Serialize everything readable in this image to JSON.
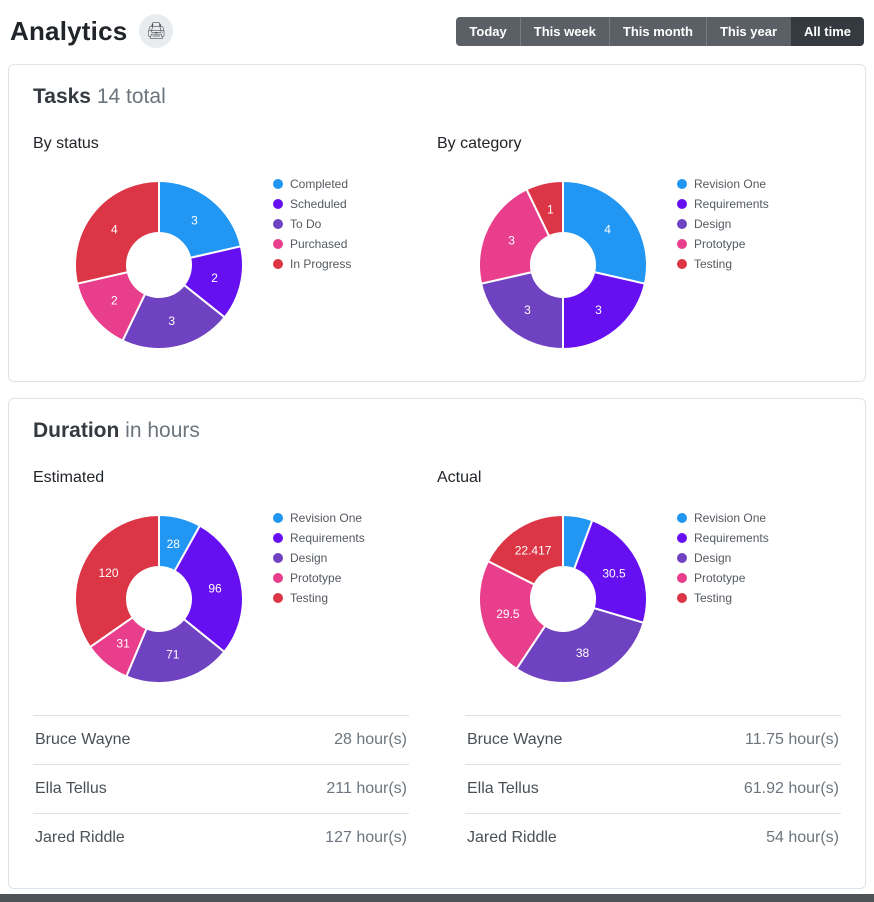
{
  "header": {
    "title": "Analytics",
    "print_glyph": "🖨",
    "time_filters": [
      {
        "label": "Today",
        "active": false
      },
      {
        "label": "This week",
        "active": false
      },
      {
        "label": "This month",
        "active": false
      },
      {
        "label": "This year",
        "active": false
      },
      {
        "label": "All time",
        "active": true
      }
    ]
  },
  "tasks_card": {
    "title": "Tasks",
    "subtitle": "14 total"
  },
  "duration_card": {
    "title": "Duration",
    "subtitle": "in hours",
    "tables": [
      {
        "rows": [
          {
            "name": "Bruce Wayne",
            "hours": "28 hour(s)"
          },
          {
            "name": "Ella Tellus",
            "hours": "211 hour(s)"
          },
          {
            "name": "Jared Riddle",
            "hours": "127 hour(s)"
          }
        ]
      },
      {
        "rows": [
          {
            "name": "Bruce Wayne",
            "hours": "11.75 hour(s)"
          },
          {
            "name": "Ella Tellus",
            "hours": "61.92 hour(s)"
          },
          {
            "name": "Jared Riddle",
            "hours": "54 hour(s)"
          }
        ]
      }
    ]
  },
  "chart_data": [
    {
      "type": "pie",
      "donut": true,
      "title": "By status",
      "categories": [
        "Completed",
        "Scheduled",
        "To Do",
        "Purchased",
        "In Progress"
      ],
      "values": [
        3,
        2,
        3,
        2,
        4
      ],
      "labels": [
        "3",
        "2",
        "3",
        "2",
        "4"
      ],
      "colors": [
        "#2196f3",
        "#6610f2",
        "#6f42c1",
        "#e83e8c",
        "#dc3545"
      ],
      "legend_position": "right"
    },
    {
      "type": "pie",
      "donut": true,
      "title": "By category",
      "categories": [
        "Revision One",
        "Requirements",
        "Design",
        "Prototype",
        "Testing"
      ],
      "values": [
        4,
        3,
        3,
        3,
        1
      ],
      "labels": [
        "4",
        "3",
        "3",
        "3",
        "1"
      ],
      "colors": [
        "#2196f3",
        "#6610f2",
        "#6f42c1",
        "#e83e8c",
        "#dc3545"
      ],
      "legend_position": "right"
    },
    {
      "type": "pie",
      "donut": true,
      "title": "Estimated",
      "categories": [
        "Revision One",
        "Requirements",
        "Design",
        "Prototype",
        "Testing"
      ],
      "values": [
        28,
        96,
        71,
        31,
        120
      ],
      "labels": [
        "28",
        "96",
        "71",
        "31",
        "120"
      ],
      "colors": [
        "#2196f3",
        "#6610f2",
        "#6f42c1",
        "#e83e8c",
        "#dc3545"
      ],
      "legend_position": "right"
    },
    {
      "type": "pie",
      "donut": true,
      "title": "Actual",
      "categories": [
        "Revision One",
        "Requirements",
        "Design",
        "Prototype",
        "Testing"
      ],
      "values": [
        7.25,
        30.5,
        38,
        29.5,
        22.417
      ],
      "labels": [
        "",
        "30.5",
        "38",
        "29.5",
        "22.417"
      ],
      "colors": [
        "#2196f3",
        "#6610f2",
        "#6f42c1",
        "#e83e8c",
        "#dc3545"
      ],
      "legend_position": "right"
    }
  ]
}
